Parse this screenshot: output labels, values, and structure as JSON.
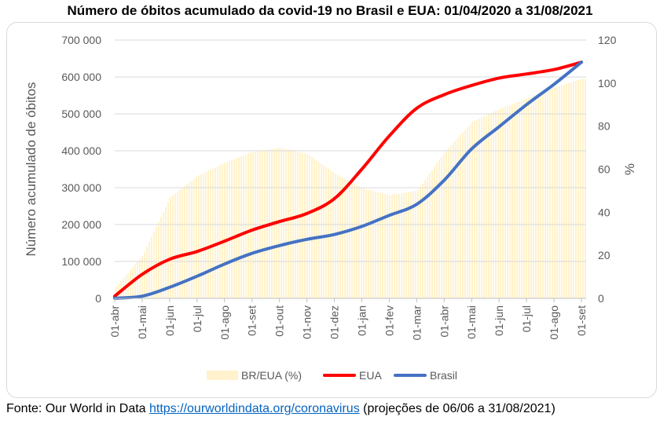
{
  "title": "Número de óbitos acumulado da covid-19 no Brasil e EUA: 01/04/2020 a 31/08/2021",
  "source": {
    "prefix": "Fonte: Our World in Data ",
    "link_text": "https://ourworldindata.org/coronavirus",
    "suffix": " (projeções de 06/06 a 31/08/2021)"
  },
  "colors": {
    "ratio_fill": "#fff2cc",
    "eua": "#ff0000",
    "brasil": "#4472c4",
    "grid": "#d9d9d9",
    "text": "#595959"
  },
  "chart_data": {
    "type": "line",
    "title": "Número de óbitos acumulado da covid-19 no Brasil e EUA: 01/04/2020 a 31/08/2021",
    "ylabel": "Número acumulado de óbitos",
    "y2label": "%",
    "ylim": [
      0,
      700000
    ],
    "y2lim": [
      0,
      120
    ],
    "yticks": [
      "0",
      "100 000",
      "200 000",
      "300 000",
      "400 000",
      "500 000",
      "600 000",
      "700 000"
    ],
    "y2ticks": [
      "0",
      "20",
      "40",
      "60",
      "80",
      "100",
      "120"
    ],
    "categories": [
      "01-abr",
      "01-mai",
      "01-jun",
      "01-jul",
      "01-ago",
      "01-set",
      "01-out",
      "01-nov",
      "01-dez",
      "01-jan",
      "01-fev",
      "01-mar",
      "01-abr",
      "01-mai",
      "01-jun",
      "01-jul",
      "01-ago",
      "01-set"
    ],
    "grid": true,
    "legend_position": "bottom",
    "series": [
      {
        "name": "BR/EUA (%)",
        "axis": "secondary",
        "kind": "column",
        "values": [
          5,
          20,
          47,
          57,
          63,
          68,
          70,
          67,
          58,
          51,
          48,
          50,
          68,
          82,
          88,
          93,
          98,
          102
        ]
      },
      {
        "name": "EUA",
        "axis": "primary",
        "kind": "line",
        "values": [
          6000,
          65000,
          106000,
          127000,
          155000,
          185000,
          208000,
          230000,
          270000,
          350000,
          440000,
          515000,
          552000,
          577000,
          597000,
          608000,
          620000,
          640000
        ]
      },
      {
        "name": "Brasil",
        "axis": "primary",
        "kind": "line",
        "values": [
          300,
          6000,
          30000,
          60000,
          93000,
          122000,
          143000,
          160000,
          173000,
          195000,
          225000,
          255000,
          320000,
          405000,
          465000,
          525000,
          580000,
          640000
        ]
      }
    ]
  }
}
